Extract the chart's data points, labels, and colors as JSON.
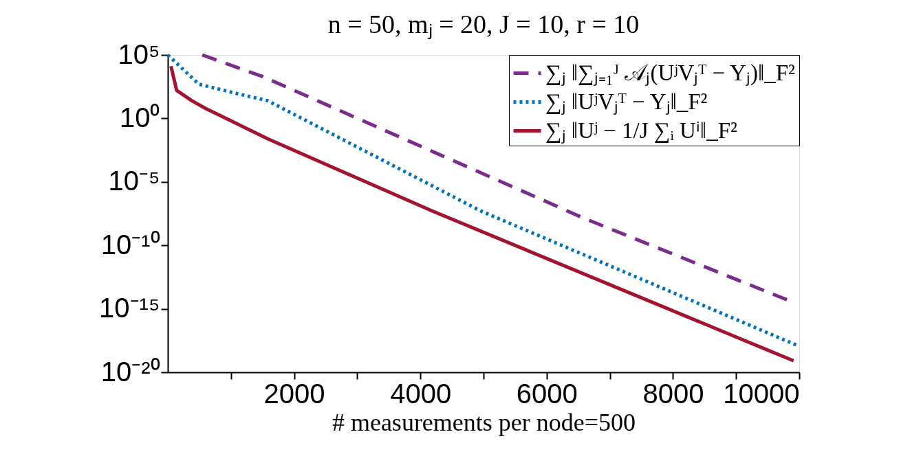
{
  "chart_data": {
    "type": "line",
    "title": "n = 50, mⱼ = 20, J = 10, r = 10",
    "xlabel": "# measurements per node=500",
    "xlim": [
      0,
      10000
    ],
    "xticks": [
      {
        "value": 1000,
        "label": null
      },
      2000,
      {
        "value": 3000,
        "label": null
      },
      4000,
      {
        "value": 5000,
        "label": null
      },
      6000,
      {
        "value": 7000,
        "label": null
      },
      8000,
      {
        "value": 9000,
        "label": null
      },
      10000
    ],
    "ylim": [
      1e-20,
      100000
    ],
    "yticks": [
      {
        "value": 1e-20,
        "label": "10⁻²⁰"
      },
      {
        "value": 1e-15,
        "label": "10⁻¹⁵"
      },
      {
        "value": 1e-10,
        "label": "10⁻¹⁰"
      },
      {
        "value": 1e-05,
        "label": "10⁻⁵"
      },
      {
        "value": 1,
        "label": "10⁰"
      },
      {
        "value": 100000,
        "label": "10⁵"
      }
    ],
    "log": "y",
    "grid": false,
    "legend": "top right",
    "marker": "none",
    "series": [
      {
        "name": "∑ⱼ ‖∑ⱼ₌₁ᴶ 𝒜ⱼ(UʲVⱼᵀ − Yⱼ)‖_F²",
        "color": "#7b2d8e",
        "line_style": "dashed",
        "x": [
          545,
          1500,
          6600,
          9860
        ],
        "values": [
          100000,
          2000,
          1.3e-08,
          4e-15
        ]
      },
      {
        "name": "∑ⱼ ‖UʲVⱼᵀ − Yⱼ‖_F²",
        "color": "#0072bd",
        "line_style": "dotted",
        "x": [
          0,
          490,
          1140,
          1580,
          4960,
          9970
        ],
        "values": [
          100000,
          500,
          80,
          25,
          5e-08,
          1.3e-18
        ]
      },
      {
        "name": "∑ⱼ ‖Uʲ − 1/J ∑ᵢ Uⁱ‖_F²",
        "color": "#a2142f",
        "line_style": "solid",
        "x": [
          50,
          140,
          380,
          600,
          925,
          1580,
          4190,
          9910
        ],
        "values": [
          13000,
          160,
          25,
          6,
          1,
          0.025,
          5e-08,
          8e-20
        ]
      }
    ]
  }
}
